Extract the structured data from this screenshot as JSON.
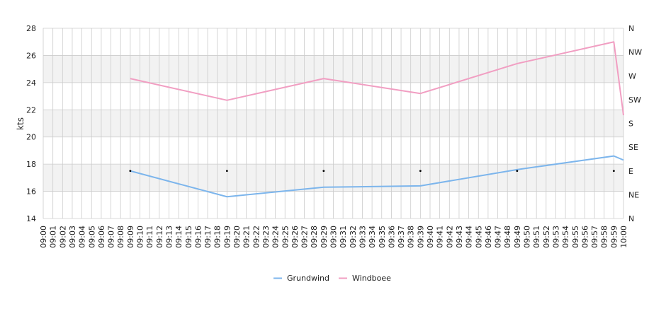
{
  "chart_data": {
    "type": "line",
    "title": "",
    "xlabel": "",
    "ylabel": "kts",
    "ylim": [
      14,
      28
    ],
    "y_ticks": [
      14,
      16,
      18,
      20,
      22,
      24,
      26,
      28
    ],
    "y2_ticks": [
      "N",
      "NE",
      "E",
      "SE",
      "S",
      "SW",
      "W",
      "NW",
      "N"
    ],
    "categories": [
      "09:00",
      "09:01",
      "09:02",
      "09:03",
      "09:04",
      "09:05",
      "09:06",
      "09:07",
      "09:08",
      "09:09",
      "09:10",
      "09:11",
      "09:12",
      "09:13",
      "09:14",
      "09:15",
      "09:16",
      "09:17",
      "09:18",
      "09:19",
      "09:20",
      "09:21",
      "09:22",
      "09:23",
      "09:24",
      "09:25",
      "09:26",
      "09:27",
      "09:28",
      "09:29",
      "09:30",
      "09:31",
      "09:32",
      "09:33",
      "09:34",
      "09:35",
      "09:36",
      "09:37",
      "09:38",
      "09:39",
      "09:40",
      "09:41",
      "09:42",
      "09:43",
      "09:44",
      "09:45",
      "09:46",
      "09:47",
      "09:48",
      "09:49",
      "09:50",
      "09:51",
      "09:52",
      "09:53",
      "09:54",
      "09:55",
      "09:56",
      "09:57",
      "09:58",
      "09:59",
      "10:00"
    ],
    "series": [
      {
        "name": "Grundwind",
        "color": "#7cb5ec",
        "points": [
          {
            "x": "09:09",
            "y": 17.5
          },
          {
            "x": "09:19",
            "y": 15.6
          },
          {
            "x": "09:29",
            "y": 16.3
          },
          {
            "x": "09:39",
            "y": 16.4
          },
          {
            "x": "09:49",
            "y": 17.6
          },
          {
            "x": "09:59",
            "y": 18.6
          },
          {
            "x": "10:00",
            "y": 18.3
          }
        ]
      },
      {
        "name": "Windboee",
        "color": "#f19ec2",
        "points": [
          {
            "x": "09:09",
            "y": 24.3
          },
          {
            "x": "09:19",
            "y": 22.7
          },
          {
            "x": "09:29",
            "y": 24.3
          },
          {
            "x": "09:39",
            "y": 23.2
          },
          {
            "x": "09:49",
            "y": 25.4
          },
          {
            "x": "09:59",
            "y": 27.0
          },
          {
            "x": "10:00",
            "y": 21.6
          }
        ]
      }
    ],
    "direction_markers": [
      {
        "x": "09:09",
        "direction": "E"
      },
      {
        "x": "09:19",
        "direction": "E"
      },
      {
        "x": "09:29",
        "direction": "E"
      },
      {
        "x": "09:39",
        "direction": "E"
      },
      {
        "x": "09:49",
        "direction": "E"
      },
      {
        "x": "09:59",
        "direction": "E"
      }
    ],
    "grid": true,
    "legend_position": "bottom-center",
    "band_color": "#f2f2f2",
    "grid_color": "#cccccc"
  }
}
